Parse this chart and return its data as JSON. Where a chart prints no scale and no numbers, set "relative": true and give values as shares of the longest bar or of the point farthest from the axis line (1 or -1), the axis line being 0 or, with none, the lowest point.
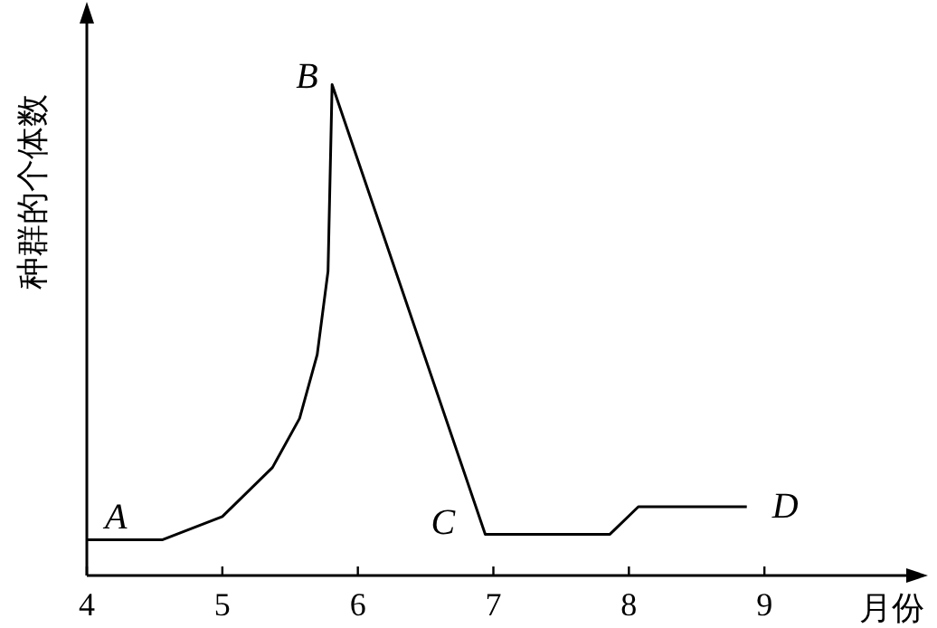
{
  "chart_data": {
    "type": "line",
    "relative": true,
    "xlabel": "月份",
    "ylabel": "种群的个体数",
    "xlim": [
      4,
      10.1
    ],
    "xticks": [
      4,
      5,
      6,
      7,
      8,
      9
    ],
    "grid": false,
    "line_style": "solid",
    "series": [
      {
        "color": "#000000",
        "x": [
          4.0,
          4.56,
          5.0,
          5.37,
          5.57,
          5.7,
          5.78,
          5.81,
          6.94,
          7.86,
          8.07,
          8.87
        ],
        "values": [
          0.073,
          0.073,
          0.12,
          0.22,
          0.32,
          0.45,
          0.62,
          1.0,
          0.084,
          0.084,
          0.14,
          0.14
        ]
      }
    ],
    "annotations": [
      {
        "text": "A",
        "x": 4.0,
        "y": 0.073
      },
      {
        "text": "B",
        "x": 5.81,
        "y": 1.0
      },
      {
        "text": "C",
        "x": 6.94,
        "y": 0.084
      },
      {
        "text": "D",
        "x": 8.87,
        "y": 0.14
      }
    ]
  }
}
